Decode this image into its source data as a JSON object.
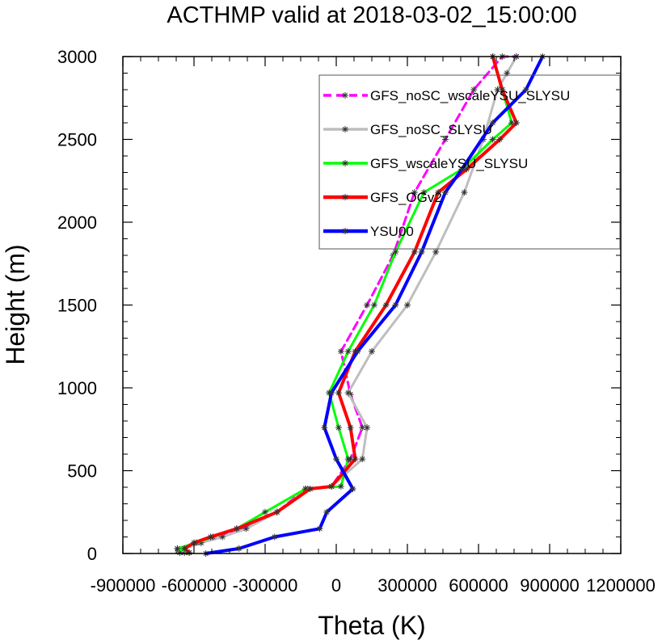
{
  "chart_data": {
    "type": "line",
    "title": "ACTHMP valid at 2018-03-02_15:00:00",
    "xlabel": "Theta (K)",
    "ylabel": "Height (m)",
    "xlim": [
      -900000,
      1200000
    ],
    "ylim": [
      0,
      3000
    ],
    "xticks": [
      -900000,
      -600000,
      -300000,
      0,
      300000,
      600000,
      900000,
      1200000
    ],
    "xtick_labels": [
      "-900000",
      "-600000",
      "-300000",
      "0",
      "300000",
      "600000",
      "900000",
      "1200000"
    ],
    "yticks": [
      0,
      500,
      1000,
      1500,
      2000,
      2500,
      3000
    ],
    "ytick_labels": [
      "0",
      "500",
      "1000",
      "1500",
      "2000",
      "2500",
      "3000"
    ],
    "grid": false,
    "legend_position": "top-right",
    "series": [
      {
        "name": "GFS_noSC_wscaleYSU_SLYSU",
        "color": "#ff00ff",
        "width": 3,
        "dash": "10,6",
        "x": [
          -640000,
          -670000,
          -570000,
          -520000,
          -400000,
          -250000,
          -130000,
          -20000,
          60000,
          110000,
          60000,
          20000,
          130000,
          240000,
          330000,
          460000,
          580000,
          700000,
          760000
        ],
        "y": [
          5,
          30,
          65,
          100,
          150,
          250,
          390,
          405,
          570,
          760,
          960,
          1220,
          1500,
          1800,
          2180,
          2500,
          2800,
          3000,
          3000
        ]
      },
      {
        "name": "GFS_noSC_SLYSU",
        "color": "#bebebe",
        "width": 3,
        "dash": "",
        "x": [
          -660000,
          -640000,
          -570000,
          -480000,
          -380000,
          -250000,
          -120000,
          -20000,
          110000,
          130000,
          50000,
          150000,
          300000,
          420000,
          540000,
          620000,
          680000,
          720000,
          760000
        ],
        "y": [
          5,
          30,
          65,
          100,
          150,
          250,
          390,
          405,
          570,
          760,
          970,
          1220,
          1500,
          1820,
          2180,
          2500,
          2800,
          2900,
          3000
        ]
      },
      {
        "name": "GFS_wscaleYSU_SLYSU",
        "color": "#00ff00",
        "width": 3,
        "dash": "",
        "x": [
          -620000,
          -670000,
          -590000,
          -520000,
          -420000,
          -300000,
          -130000,
          20000,
          50000,
          10000,
          -30000,
          50000,
          160000,
          250000,
          370000,
          530000,
          660000,
          740000,
          700000,
          660000
        ],
        "y": [
          5,
          30,
          65,
          100,
          150,
          250,
          390,
          405,
          570,
          760,
          970,
          1220,
          1500,
          1820,
          2180,
          2320,
          2500,
          2600,
          2800,
          3000
        ]
      },
      {
        "name": "GFS_OGv2",
        "color": "#ff0000",
        "width": 4,
        "dash": "",
        "x": [
          -620000,
          -640000,
          -600000,
          -530000,
          -420000,
          -250000,
          -110000,
          -20000,
          80000,
          60000,
          10000,
          80000,
          210000,
          330000,
          430000,
          550000,
          690000,
          760000,
          700000,
          660000
        ],
        "y": [
          5,
          30,
          65,
          100,
          150,
          250,
          390,
          405,
          570,
          760,
          970,
          1220,
          1500,
          1820,
          2180,
          2320,
          2500,
          2600,
          2800,
          3000
        ]
      },
      {
        "name": "YSU00",
        "color": "#0000ff",
        "width": 4,
        "dash": "",
        "x": [
          -550000,
          -410000,
          -260000,
          -70000,
          -40000,
          70000,
          0,
          -50000,
          -20000,
          90000,
          250000,
          360000,
          460000,
          530000,
          660000,
          800000,
          870000
        ],
        "y": [
          0,
          30,
          100,
          150,
          250,
          390,
          570,
          760,
          970,
          1220,
          1500,
          1820,
          2180,
          2320,
          2600,
          2800,
          3000
        ]
      }
    ]
  }
}
